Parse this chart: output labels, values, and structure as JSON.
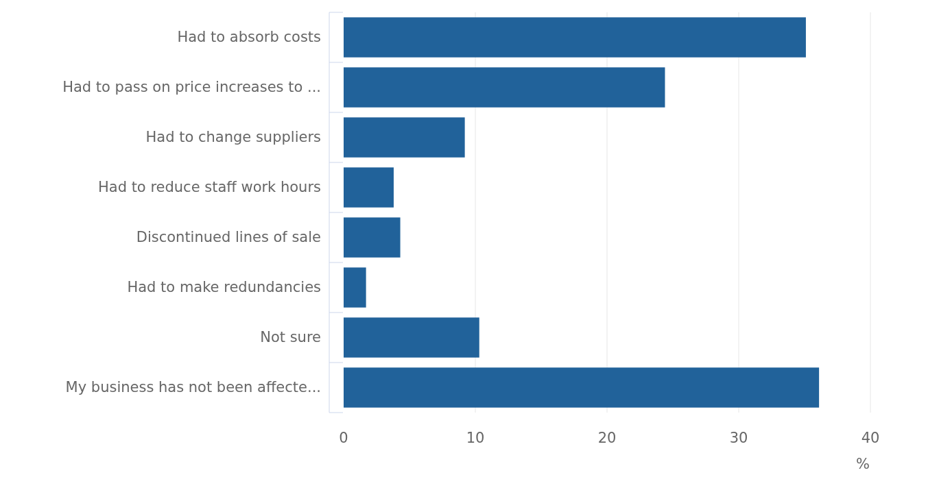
{
  "chart_data": {
    "type": "bar",
    "orientation": "horizontal",
    "categories": [
      "Had to absorb costs",
      "Had to pass on price increases to ...",
      "Had to change suppliers",
      "Had to reduce staff work hours",
      "Discontinued lines of sale",
      "Had to make redundancies",
      "Not sure",
      "My business has not been affecte..."
    ],
    "values": [
      35.1,
      24.4,
      9.2,
      3.8,
      4.3,
      1.7,
      10.3,
      36.1
    ],
    "color": "#21629a",
    "xlim": [
      0,
      40
    ],
    "xticks": [
      0,
      10,
      20,
      30,
      40
    ],
    "xlabel": "%",
    "grid": "x"
  }
}
